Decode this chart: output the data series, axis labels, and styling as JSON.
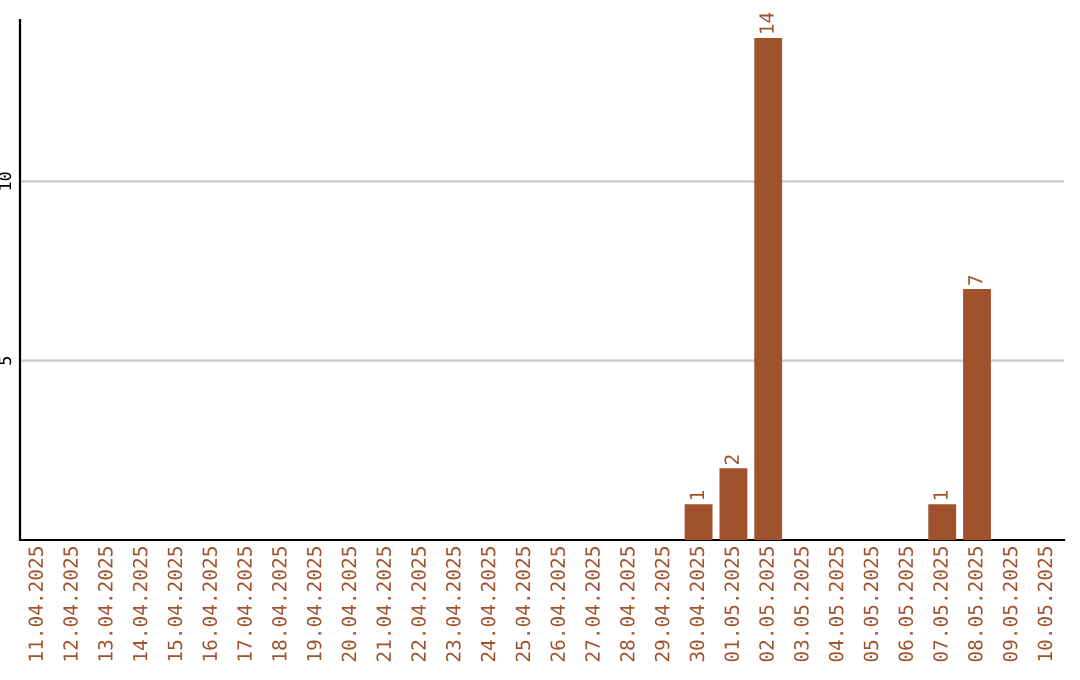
{
  "chart_data": {
    "type": "bar",
    "categories": [
      "11.04.2025",
      "12.04.2025",
      "13.04.2025",
      "14.04.2025",
      "15.04.2025",
      "16.04.2025",
      "17.04.2025",
      "18.04.2025",
      "19.04.2025",
      "20.04.2025",
      "21.04.2025",
      "22.04.2025",
      "23.04.2025",
      "24.04.2025",
      "25.04.2025",
      "26.04.2025",
      "27.04.2025",
      "28.04.2025",
      "29.04.2025",
      "30.04.2025",
      "01.05.2025",
      "02.05.2025",
      "03.05.2025",
      "04.05.2025",
      "05.05.2025",
      "06.05.2025",
      "07.05.2025",
      "08.05.2025",
      "09.05.2025",
      "10.05.2025"
    ],
    "values": [
      0,
      0,
      0,
      0,
      0,
      0,
      0,
      0,
      0,
      0,
      0,
      0,
      0,
      0,
      0,
      0,
      0,
      0,
      0,
      1,
      2,
      14,
      0,
      0,
      0,
      0,
      1,
      7,
      0,
      0
    ],
    "value_labels": [
      null,
      null,
      null,
      null,
      null,
      null,
      null,
      null,
      null,
      null,
      null,
      null,
      null,
      null,
      null,
      null,
      null,
      null,
      null,
      "1",
      "2",
      "14",
      null,
      null,
      null,
      null,
      "1",
      "7",
      null,
      null
    ],
    "color": "#a0522d",
    "ylim": [
      0,
      14.5
    ],
    "yticks": [
      5,
      10
    ],
    "grid": "y",
    "legend": false
  }
}
